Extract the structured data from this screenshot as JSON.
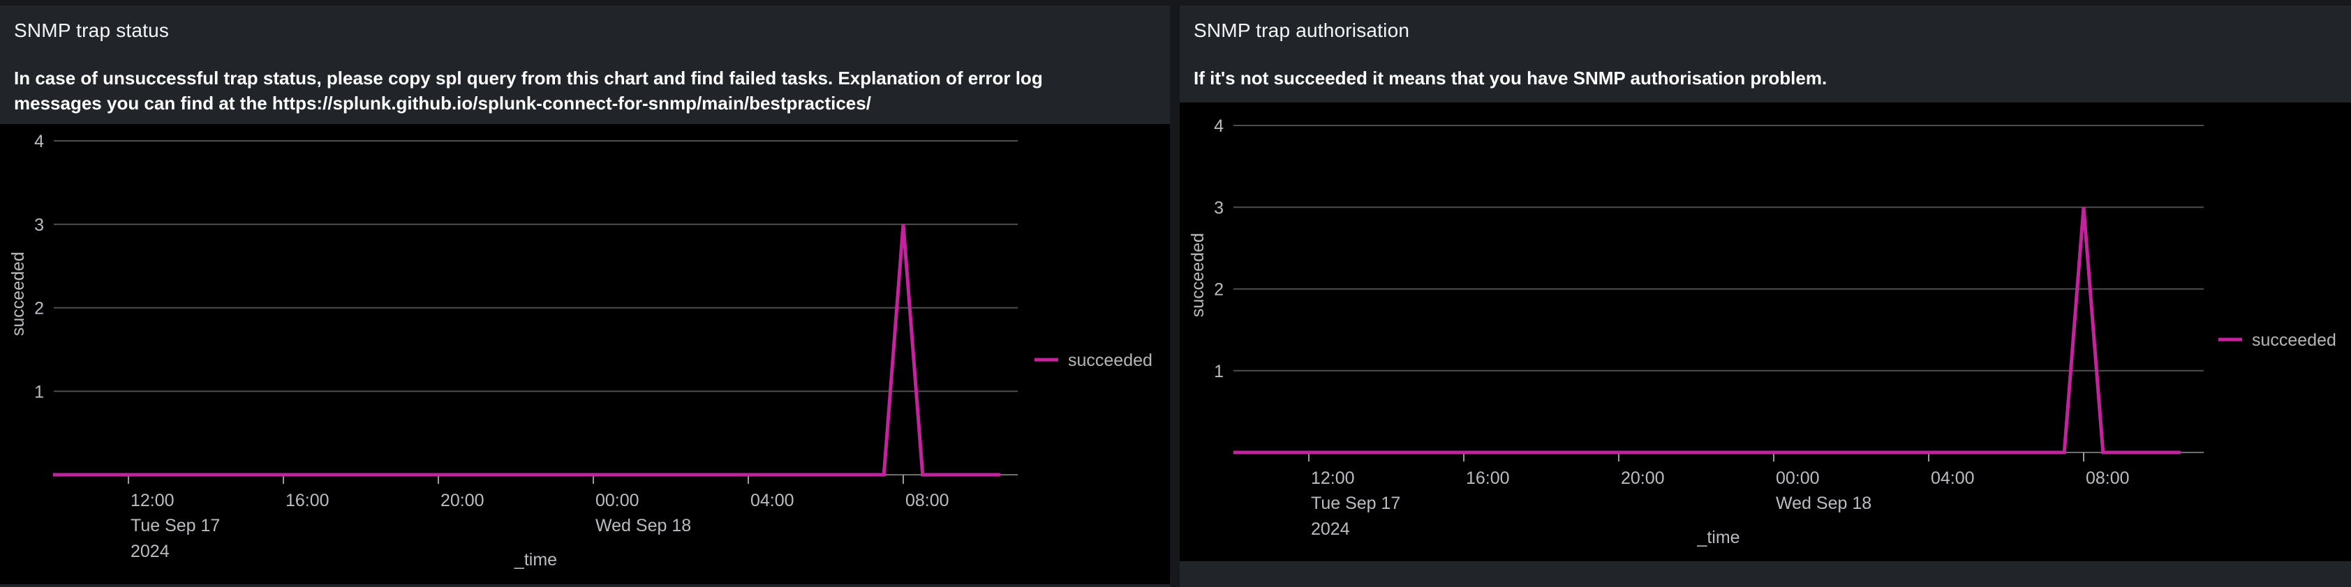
{
  "page": {
    "background": "#16181c",
    "panel_background": "#212429",
    "viz_background": "#000000",
    "accent_series_color": "#c4239d"
  },
  "panels": [
    {
      "title": "SNMP trap status",
      "description": "In case of unsuccessful trap status, please copy spl query from this chart and find failed tasks. Explanation of error log messages you can find at the https://splunk.github.io/splunk-connect-for-snmp/main/bestpractices/"
    },
    {
      "title": "SNMP trap authorisation",
      "description": "If it's not succeeded it means that you have SNMP authorisation problem."
    }
  ],
  "chart_data": [
    {
      "type": "line",
      "panel": "SNMP trap status",
      "xlabel": "_time",
      "ylabel": "succeeded",
      "ylim": [
        0,
        4
      ],
      "y_ticks": [
        1,
        2,
        3,
        4
      ],
      "grid": "horizontal",
      "x_note": "h = hours since Tue Sep 17 2024 00:00; axis spans ~10:00 Tue Sep 17 to ~11:00 Wed Sep 18",
      "x_ticks": [
        {
          "h": 12,
          "label": "12:00",
          "sub": [
            "Tue Sep 17",
            "2024"
          ]
        },
        {
          "h": 16,
          "label": "16:00"
        },
        {
          "h": 20,
          "label": "20:00"
        },
        {
          "h": 24,
          "label": "00:00",
          "sub": [
            "Wed Sep 18"
          ]
        },
        {
          "h": 28,
          "label": "04:00"
        },
        {
          "h": 32,
          "label": "08:00"
        }
      ],
      "series": [
        {
          "name": "succeeded",
          "color": "#c4239d",
          "points": [
            {
              "h": 10.05,
              "t": "Tue Sep 17 ~10:00",
              "v": 0
            },
            {
              "h": 31.5,
              "t": "Wed Sep 18 07:30",
              "v": 0
            },
            {
              "h": 32,
              "t": "Wed Sep 18 08:00",
              "v": 3
            },
            {
              "h": 32.5,
              "t": "Wed Sep 18 08:30",
              "v": 0
            },
            {
              "h": 34.5,
              "t": "Wed Sep 18 ~10:30",
              "v": 0
            }
          ]
        }
      ],
      "legend": {
        "position": "right",
        "items": [
          "succeeded"
        ]
      }
    },
    {
      "type": "line",
      "panel": "SNMP trap authorisation",
      "xlabel": "_time",
      "ylabel": "succeeded",
      "ylim": [
        0,
        4
      ],
      "y_ticks": [
        1,
        2,
        3,
        4
      ],
      "grid": "horizontal",
      "x_note": "h = hours since Tue Sep 17 2024 00:00; axis spans ~10:00 Tue Sep 17 to ~11:00 Wed Sep 18",
      "x_ticks": [
        {
          "h": 12,
          "label": "12:00",
          "sub": [
            "Tue Sep 17",
            "2024"
          ]
        },
        {
          "h": 16,
          "label": "16:00"
        },
        {
          "h": 20,
          "label": "20:00"
        },
        {
          "h": 24,
          "label": "00:00",
          "sub": [
            "Wed Sep 18"
          ]
        },
        {
          "h": 28,
          "label": "04:00"
        },
        {
          "h": 32,
          "label": "08:00"
        }
      ],
      "series": [
        {
          "name": "succeeded",
          "color": "#c4239d",
          "points": [
            {
              "h": 10.05,
              "t": "Tue Sep 17 ~10:00",
              "v": 0
            },
            {
              "h": 31.5,
              "t": "Wed Sep 18 07:30",
              "v": 0
            },
            {
              "h": 32,
              "t": "Wed Sep 18 08:00",
              "v": 3
            },
            {
              "h": 32.5,
              "t": "Wed Sep 18 08:30",
              "v": 0
            },
            {
              "h": 34.5,
              "t": "Wed Sep 18 ~10:30",
              "v": 0
            }
          ]
        }
      ],
      "legend": {
        "position": "right",
        "items": [
          "succeeded"
        ]
      }
    }
  ]
}
